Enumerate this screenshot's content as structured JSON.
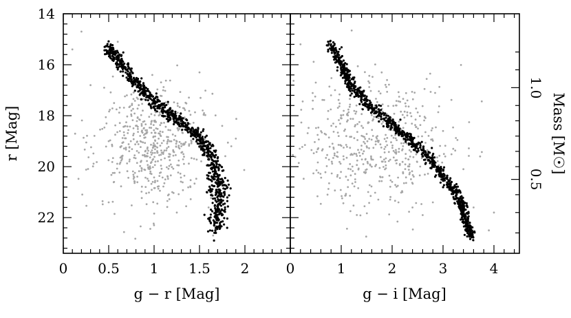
{
  "chart_data": [
    {
      "type": "scatter",
      "panel": "left",
      "xlabel": "g − r [Mag]",
      "ylabel": "r [Mag]",
      "xlim": [
        0,
        2.5
      ],
      "ylim": [
        23.4,
        14
      ],
      "y_inverted": true,
      "xticks": [
        "0",
        "0.5",
        "1",
        "1.5",
        "2"
      ],
      "yticks": [
        "14",
        "16",
        "18",
        "20",
        "22"
      ],
      "colors": {
        "member": "#000000",
        "field": "#a6a6a6"
      },
      "sequence": [
        [
          0.5,
          15.3
        ],
        [
          0.6,
          15.8
        ],
        [
          0.75,
          16.5
        ],
        [
          0.9,
          17.1
        ],
        [
          1.05,
          17.6
        ],
        [
          1.2,
          18.0
        ],
        [
          1.35,
          18.4
        ],
        [
          1.5,
          18.8
        ],
        [
          1.6,
          19.3
        ],
        [
          1.65,
          19.9
        ],
        [
          1.7,
          20.6
        ],
        [
          1.72,
          21.2
        ],
        [
          1.7,
          21.8
        ],
        [
          1.68,
          22.5
        ]
      ],
      "field_region": {
        "x": [
          0.5,
          1.9
        ],
        "y": [
          16.0,
          22.0
        ],
        "center": [
          1.0,
          19.2
        ]
      },
      "series": [
        {
          "values": [
            [
              0.52,
              15.25
            ],
            [
              0.55,
              15.4
            ],
            [
              0.58,
              15.55
            ],
            [
              0.6,
              15.7
            ],
            [
              0.63,
              15.85
            ],
            [
              0.66,
              16.0
            ],
            [
              0.7,
              16.2
            ],
            [
              0.74,
              16.4
            ],
            [
              0.78,
              16.6
            ],
            [
              0.82,
              16.8
            ],
            [
              0.86,
              16.95
            ],
            [
              0.9,
              17.1
            ],
            [
              0.95,
              17.3
            ],
            [
              1.0,
              17.45
            ],
            [
              1.05,
              17.6
            ],
            [
              1.1,
              17.75
            ],
            [
              1.15,
              17.9
            ],
            [
              1.2,
              18.0
            ],
            [
              1.25,
              18.15
            ],
            [
              1.3,
              18.3
            ],
            [
              1.35,
              18.4
            ],
            [
              1.4,
              18.55
            ],
            [
              1.45,
              18.7
            ],
            [
              1.5,
              18.85
            ],
            [
              1.55,
              19.05
            ],
            [
              1.6,
              19.3
            ],
            [
              1.62,
              19.6
            ],
            [
              1.65,
              19.9
            ],
            [
              1.68,
              20.2
            ],
            [
              1.7,
              20.5
            ],
            [
              1.72,
              20.9
            ],
            [
              1.73,
              21.3
            ],
            [
              1.71,
              21.7
            ],
            [
              1.69,
              22.1
            ],
            [
              1.68,
              22.6
            ],
            [
              1.66,
              22.9
            ],
            [
              0.62,
              15.6
            ],
            [
              0.88,
              16.8
            ],
            [
              1.12,
              17.6
            ],
            [
              1.42,
              18.7
            ],
            [
              1.66,
              20.3
            ],
            [
              1.74,
              21.1
            ],
            [
              1.69,
              21.9
            ]
          ]
        },
        {
          "values": [
            [
              0.1,
              15.4
            ],
            [
              0.3,
              16.8
            ],
            [
              0.45,
              16.9
            ],
            [
              0.5,
              19.0
            ],
            [
              0.5,
              21.4
            ],
            [
              0.6,
              15.1
            ],
            [
              0.7,
              17.2
            ],
            [
              0.75,
              17.8
            ],
            [
              0.8,
              18.4
            ],
            [
              0.85,
              19.0
            ],
            [
              0.9,
              19.6
            ],
            [
              0.95,
              20.1
            ],
            [
              1.0,
              18.2
            ],
            [
              1.05,
              18.9
            ],
            [
              1.1,
              19.5
            ],
            [
              1.15,
              20.4
            ],
            [
              1.2,
              21.0
            ],
            [
              1.25,
              21.8
            ],
            [
              1.3,
              19.2
            ],
            [
              1.4,
              20.8
            ],
            [
              1.5,
              16.3
            ],
            [
              1.55,
              17.9
            ],
            [
              1.6,
              21.6
            ],
            [
              1.75,
              18.4
            ],
            [
              1.85,
              19.2
            ],
            [
              1.9,
              18.9
            ],
            [
              1.65,
              22.7
            ],
            [
              0.2,
              14.7
            ],
            [
              0.98,
              16.4
            ],
            [
              1.1,
              17.0
            ]
          ]
        }
      ]
    },
    {
      "type": "scatter",
      "panel": "right",
      "xlabel": "g − i [Mag]",
      "ylabel2": "Mass [M☉]",
      "xlim": [
        0,
        4.5
      ],
      "ylim": [
        23.4,
        14
      ],
      "y_inverted": true,
      "xticks": [
        "0",
        "1",
        "2",
        "3",
        "4"
      ],
      "mass_ticks": [
        {
          "label": "1.0",
          "r": 16.9
        },
        {
          "label": "0.5",
          "r": 20.5
        }
      ],
      "colors": {
        "member": "#000000",
        "field": "#a6a6a6"
      },
      "sequence": [
        [
          0.78,
          15.2
        ],
        [
          1.0,
          16.0
        ],
        [
          1.2,
          16.8
        ],
        [
          1.5,
          17.5
        ],
        [
          1.9,
          18.2
        ],
        [
          2.3,
          18.8
        ],
        [
          2.7,
          19.6
        ],
        [
          3.0,
          20.4
        ],
        [
          3.3,
          21.2
        ],
        [
          3.45,
          22.0
        ],
        [
          3.55,
          22.8
        ]
      ],
      "field_region": {
        "x": [
          0.5,
          4.2
        ],
        "y": [
          15.8,
          22.5
        ],
        "center": [
          1.6,
          19.0
        ]
      },
      "series": [
        {
          "values": [
            [
              0.8,
              15.2
            ],
            [
              0.85,
              15.45
            ],
            [
              0.9,
              15.7
            ],
            [
              0.97,
              15.95
            ],
            [
              1.05,
              16.25
            ],
            [
              1.12,
              16.55
            ],
            [
              1.2,
              16.85
            ],
            [
              1.3,
              17.1
            ],
            [
              1.4,
              17.35
            ],
            [
              1.5,
              17.55
            ],
            [
              1.62,
              17.8
            ],
            [
              1.75,
              18.0
            ],
            [
              1.9,
              18.2
            ],
            [
              2.05,
              18.4
            ],
            [
              2.2,
              18.6
            ],
            [
              2.35,
              18.85
            ],
            [
              2.5,
              19.1
            ],
            [
              2.65,
              19.4
            ],
            [
              2.8,
              19.75
            ],
            [
              2.95,
              20.1
            ],
            [
              3.05,
              20.45
            ],
            [
              3.15,
              20.8
            ],
            [
              3.25,
              21.15
            ],
            [
              3.35,
              21.55
            ],
            [
              3.42,
              21.95
            ],
            [
              3.48,
              22.35
            ],
            [
              3.52,
              22.75
            ],
            [
              1.0,
              16.1
            ],
            [
              1.6,
              17.7
            ],
            [
              2.3,
              18.7
            ],
            [
              2.9,
              20.0
            ],
            [
              3.3,
              21.4
            ]
          ]
        },
        {
          "values": [
            [
              0.2,
              15.2
            ],
            [
              0.5,
              16.7
            ],
            [
              0.8,
              17.2
            ],
            [
              1.0,
              18.0
            ],
            [
              1.1,
              18.8
            ],
            [
              1.2,
              19.5
            ],
            [
              1.3,
              17.6
            ],
            [
              1.4,
              18.4
            ],
            [
              1.5,
              19.2
            ],
            [
              1.6,
              20.0
            ],
            [
              1.7,
              18.9
            ],
            [
              1.8,
              19.8
            ],
            [
              2.0,
              20.6
            ],
            [
              2.2,
              21.0
            ],
            [
              2.4,
              21.6
            ],
            [
              2.6,
              21.9
            ],
            [
              2.8,
              21.4
            ],
            [
              3.0,
              18.6
            ],
            [
              3.2,
              19.3
            ],
            [
              3.4,
              20.1
            ],
            [
              3.6,
              21.6
            ],
            [
              3.9,
              22.5
            ],
            [
              4.0,
              21.8
            ],
            [
              3.6,
              22.9
            ],
            [
              1.9,
              16.6
            ],
            [
              2.3,
              17.4
            ]
          ]
        }
      ]
    }
  ]
}
